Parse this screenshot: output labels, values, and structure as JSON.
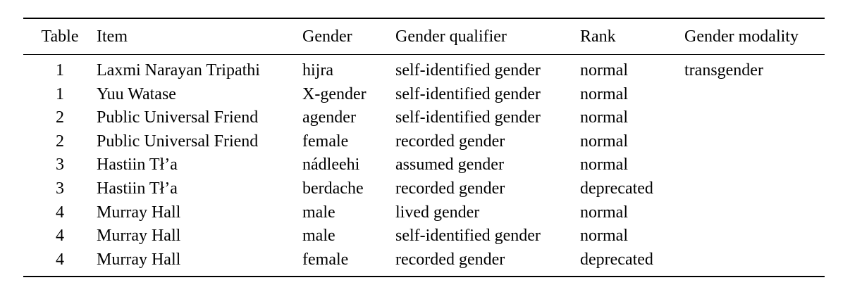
{
  "table": {
    "headers": {
      "table": "Table",
      "item": "Item",
      "gender": "Gender",
      "gender_qualifier": "Gender qualifier",
      "rank": "Rank",
      "gender_modality": "Gender modality"
    },
    "rows": [
      {
        "table": "1",
        "item": "Laxmi Narayan Tripathi",
        "gender": "hijra",
        "gender_qualifier": "self-identified gender",
        "rank": "normal",
        "gender_modality": "transgender"
      },
      {
        "table": "1",
        "item": "Yuu Watase",
        "gender": "X-gender",
        "gender_qualifier": "self-identified gender",
        "rank": "normal",
        "gender_modality": ""
      },
      {
        "table": "2",
        "item": "Public Universal Friend",
        "gender": "agender",
        "gender_qualifier": "self-identified gender",
        "rank": "normal",
        "gender_modality": ""
      },
      {
        "table": "2",
        "item": "Public Universal Friend",
        "gender": "female",
        "gender_qualifier": "recorded gender",
        "rank": "normal",
        "gender_modality": ""
      },
      {
        "table": "3",
        "item": "Hastiin Tł’a",
        "gender": "nádleehi",
        "gender_qualifier": "assumed gender",
        "rank": "normal",
        "gender_modality": ""
      },
      {
        "table": "3",
        "item": "Hastiin Tł’a",
        "gender": "berdache",
        "gender_qualifier": "recorded gender",
        "rank": "deprecated",
        "gender_modality": ""
      },
      {
        "table": "4",
        "item": "Murray Hall",
        "gender": "male",
        "gender_qualifier": "lived gender",
        "rank": "normal",
        "gender_modality": ""
      },
      {
        "table": "4",
        "item": "Murray Hall",
        "gender": "male",
        "gender_qualifier": "self-identified gender",
        "rank": "normal",
        "gender_modality": ""
      },
      {
        "table": "4",
        "item": "Murray Hall",
        "gender": "female",
        "gender_qualifier": "recorded gender",
        "rank": "deprecated",
        "gender_modality": ""
      }
    ]
  }
}
